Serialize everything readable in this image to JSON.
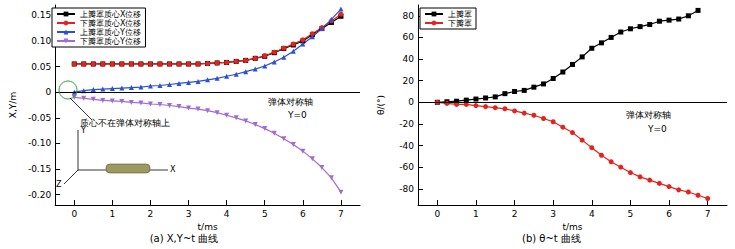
{
  "chart_data": [
    {
      "type": "line",
      "title": "(a) X,Y~t 曲线",
      "x_label": "t/ms",
      "y_label": "X,Y/m",
      "xlim": [
        -0.5,
        7.5
      ],
      "xticks": [
        0,
        1,
        2,
        3,
        4,
        5,
        6,
        7
      ],
      "ylim": [
        -0.22,
        0.17
      ],
      "yticks": [
        {
          "value": -0.2,
          "label": "-0.20"
        },
        -0.15,
        {
          "value": -0.1,
          "label": "-0.10"
        },
        -0.05,
        0,
        0.05,
        {
          "value": 0.1,
          "label": "0.10"
        },
        0.15
      ],
      "grid": false,
      "legend": "upper left",
      "hline": 0,
      "annotations": [
        "质心不在弹体对称轴上",
        "弹体对称轴",
        "Y=0"
      ],
      "inset_axes": [
        "Y",
        "X",
        "Z"
      ],
      "series": [
        {
          "name": "上瓣罩质心X位移",
          "color": "#000000",
          "marker": "square",
          "x": [
            0,
            0.25,
            0.5,
            0.75,
            1,
            1.25,
            1.5,
            1.75,
            2,
            2.25,
            2.5,
            2.75,
            3,
            3.25,
            3.5,
            3.75,
            4,
            4.25,
            4.5,
            4.75,
            5,
            5.25,
            5.5,
            5.75,
            6,
            6.25,
            6.5,
            6.75,
            7
          ],
          "values": [
            0.055,
            0.055,
            0.055,
            0.055,
            0.055,
            0.055,
            0.055,
            0.055,
            0.055,
            0.055,
            0.055,
            0.055,
            0.055,
            0.055,
            0.056,
            0.057,
            0.058,
            0.06,
            0.062,
            0.066,
            0.07,
            0.077,
            0.085,
            0.092,
            0.1,
            0.112,
            0.124,
            0.136,
            0.148
          ]
        },
        {
          "name": "下瓣罩质心X位移",
          "color": "#e8221b",
          "marker": "circle",
          "x": [
            0,
            0.25,
            0.5,
            0.75,
            1,
            1.25,
            1.5,
            1.75,
            2,
            2.25,
            2.5,
            2.75,
            3,
            3.25,
            3.5,
            3.75,
            4,
            4.25,
            4.5,
            4.75,
            5,
            5.25,
            5.5,
            5.75,
            6,
            6.25,
            6.5,
            6.75,
            7
          ],
          "values": [
            0.055,
            0.055,
            0.055,
            0.055,
            0.055,
            0.055,
            0.055,
            0.055,
            0.055,
            0.055,
            0.055,
            0.055,
            0.055,
            0.055,
            0.056,
            0.057,
            0.058,
            0.06,
            0.062,
            0.066,
            0.071,
            0.078,
            0.086,
            0.094,
            0.102,
            0.114,
            0.126,
            0.139,
            0.152
          ]
        },
        {
          "name": "上瓣罩质心Y位移",
          "color": "#2b4fd6",
          "marker": "triangle",
          "x": [
            0,
            0.25,
            0.5,
            0.75,
            1,
            1.25,
            1.5,
            1.75,
            2,
            2.25,
            2.5,
            2.75,
            3,
            3.25,
            3.5,
            3.75,
            4,
            4.25,
            4.5,
            4.75,
            5,
            5.25,
            5.5,
            5.75,
            6,
            6.25,
            6.5,
            6.75,
            7
          ],
          "values": [
            0.0,
            0.003,
            0.005,
            0.006,
            0.007,
            0.008,
            0.009,
            0.01,
            0.012,
            0.013,
            0.015,
            0.017,
            0.019,
            0.021,
            0.024,
            0.027,
            0.031,
            0.035,
            0.04,
            0.045,
            0.051,
            0.059,
            0.068,
            0.08,
            0.094,
            0.108,
            0.124,
            0.142,
            0.162
          ]
        },
        {
          "name": "下瓣罩质心Y位移",
          "color": "#a36bd1",
          "marker": "triangle-down",
          "x": [
            0,
            0.25,
            0.5,
            0.75,
            1,
            1.25,
            1.5,
            1.75,
            2,
            2.25,
            2.5,
            2.75,
            3,
            3.25,
            3.5,
            3.75,
            4,
            4.25,
            4.5,
            4.75,
            5,
            5.25,
            5.5,
            5.75,
            6,
            6.25,
            6.5,
            6.75,
            7
          ],
          "values": [
            -0.01,
            -0.012,
            -0.014,
            -0.016,
            -0.017,
            -0.018,
            -0.02,
            -0.021,
            -0.023,
            -0.024,
            -0.026,
            -0.028,
            -0.031,
            -0.033,
            -0.036,
            -0.04,
            -0.045,
            -0.05,
            -0.056,
            -0.063,
            -0.071,
            -0.08,
            -0.091,
            -0.102,
            -0.115,
            -0.13,
            -0.147,
            -0.167,
            -0.195
          ]
        }
      ]
    },
    {
      "type": "line",
      "title": "(b) θ~t 曲线",
      "x_label": "t/ms",
      "y_label": "θ/(°)",
      "xlim": [
        -0.5,
        7.5
      ],
      "xticks": [
        0,
        1,
        2,
        3,
        4,
        5,
        6,
        7
      ],
      "ylim": [
        -95,
        90
      ],
      "yticks": [
        -80,
        -60,
        -40,
        -20,
        0,
        20,
        40,
        60,
        80
      ],
      "grid": false,
      "legend": "upper left",
      "hline": 0,
      "annotations": [
        "弹体对称轴",
        "Y=0"
      ],
      "series": [
        {
          "name": "上瓣罩",
          "color": "#000000",
          "marker": "square",
          "x": [
            0,
            0.25,
            0.5,
            0.75,
            1,
            1.25,
            1.5,
            1.75,
            2,
            2.25,
            2.5,
            2.75,
            3,
            3.25,
            3.5,
            3.75,
            4,
            4.25,
            4.5,
            4.75,
            5,
            5.25,
            5.5,
            5.75,
            6,
            6.25,
            6.5,
            6.75
          ],
          "values": [
            0,
            0.5,
            1,
            2,
            3,
            4,
            5,
            8,
            10,
            11,
            14,
            17,
            22,
            28,
            35,
            42,
            50,
            55,
            60,
            65,
            68,
            70,
            72,
            75,
            76,
            77,
            80,
            85
          ]
        },
        {
          "name": "下瓣罩",
          "color": "#e8221b",
          "marker": "circle",
          "x": [
            0,
            0.25,
            0.5,
            0.75,
            1,
            1.25,
            1.5,
            1.75,
            2,
            2.25,
            2.5,
            2.75,
            3,
            3.25,
            3.5,
            3.75,
            4,
            4.25,
            4.5,
            4.75,
            5,
            5.25,
            5.5,
            5.75,
            6,
            6.25,
            6.5,
            6.75,
            7
          ],
          "values": [
            0,
            -1,
            -2,
            -2,
            -3,
            -4,
            -5,
            -6,
            -8,
            -10,
            -12,
            -15,
            -18,
            -23,
            -28,
            -35,
            -42,
            -49,
            -55,
            -60,
            -65,
            -69,
            -72,
            -75,
            -78,
            -81,
            -83,
            -86,
            -89
          ]
        }
      ]
    }
  ]
}
